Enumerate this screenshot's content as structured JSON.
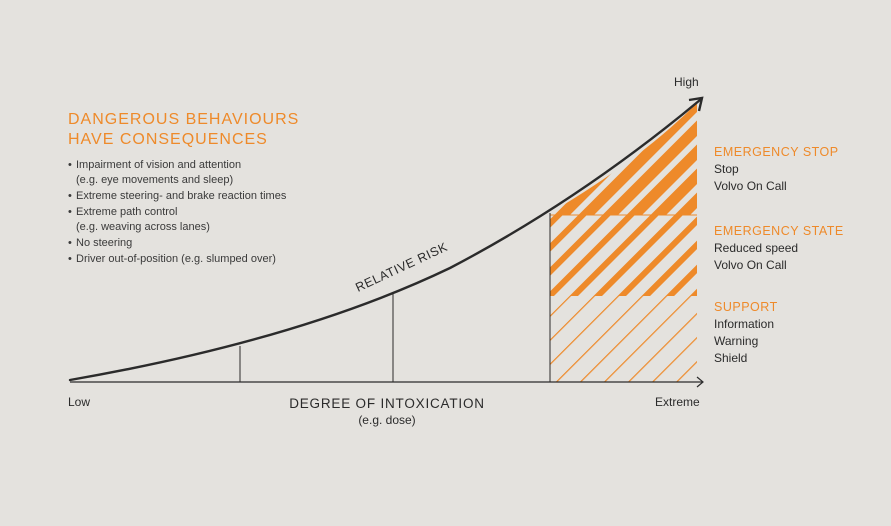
{
  "heading": {
    "line1": "DANGEROUS BEHAVIOURS",
    "line2": "HAVE CONSEQUENCES"
  },
  "behaviours": [
    {
      "text": "Impairment of vision and attention",
      "sub": "(e.g. eye movements and sleep)"
    },
    {
      "text": "Extreme steering- and brake reaction times",
      "sub": ""
    },
    {
      "text": "Extreme path control",
      "sub": "(e.g. weaving across lanes)"
    },
    {
      "text": "No steering",
      "sub": ""
    },
    {
      "text": "Driver out-of-position (e.g. slumped over)",
      "sub": ""
    }
  ],
  "zones": {
    "emergency_stop": {
      "title": "EMERGENCY STOP",
      "lines": [
        "Stop",
        "Volvo On Call"
      ]
    },
    "emergency_state": {
      "title": "EMERGENCY STATE",
      "lines": [
        "Reduced speed",
        "Volvo On Call"
      ]
    },
    "support": {
      "title": "SUPPORT",
      "lines": [
        "Information",
        "Warning",
        "Shield"
      ]
    }
  },
  "axes": {
    "x_title": "DEGREE OF INTOXICATION",
    "x_subtitle": "(e.g. dose)",
    "x_low": "Low",
    "x_high": "Extreme",
    "y_high": "High",
    "curve_label": "RELATIVE RISK"
  },
  "colors": {
    "accent": "#ee8a2a",
    "ink": "#2b2b2b",
    "background": "#e4e2de"
  }
}
